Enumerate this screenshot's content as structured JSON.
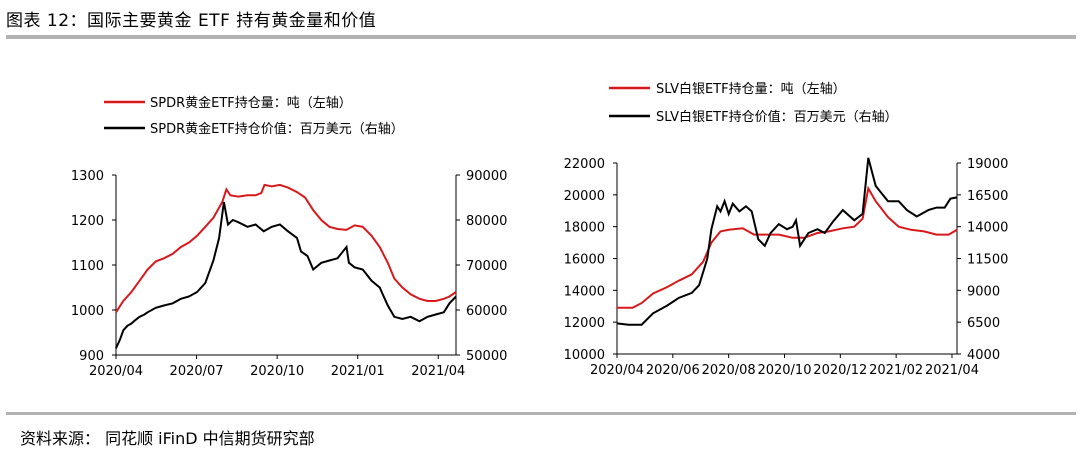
{
  "header": {
    "title": "图表 12：国际主要黄金 ETF 持有黄金量和价值"
  },
  "footer": {
    "source": "资料来源：  同花顺 iFinD 中信期货研究部"
  },
  "colors": {
    "red": "#d7191c",
    "black": "#000000",
    "rule": "#b3b3b3"
  },
  "chart_data": [
    {
      "type": "line",
      "legend": [
        "SPDR黄金ETF持仓量：吨（左轴）",
        "SPDR黄金ETF持仓价值：百万美元（右轴）"
      ],
      "x_ticks": [
        "2020/04",
        "2020/07",
        "2020/10",
        "2021/01",
        "2021/04"
      ],
      "y_left": {
        "ticks": [
          "1300",
          "1200",
          "1100",
          "1000",
          "900"
        ],
        "lim": [
          900,
          1300
        ]
      },
      "y_right": {
        "ticks": [
          "90000",
          "80000",
          "70000",
          "60000",
          "50000"
        ],
        "lim": [
          50000,
          90000
        ]
      },
      "x_range": [
        "2020-03-27",
        "2021-05-20"
      ],
      "series": [
        {
          "name": "SPDR黄金ETF持仓量：吨（左轴）",
          "axis": "left",
          "color": "#d7191c",
          "points": [
            [
              "2020-03-27",
              995
            ],
            [
              "2020-04-05",
              1020
            ],
            [
              "2020-04-15",
              1040
            ],
            [
              "2020-04-25",
              1065
            ],
            [
              "2020-05-05",
              1090
            ],
            [
              "2020-05-15",
              1108
            ],
            [
              "2020-05-25",
              1115
            ],
            [
              "2020-06-05",
              1125
            ],
            [
              "2020-06-15",
              1140
            ],
            [
              "2020-06-25",
              1150
            ],
            [
              "2020-07-05",
              1165
            ],
            [
              "2020-07-15",
              1185
            ],
            [
              "2020-07-25",
              1205
            ],
            [
              "2020-08-05",
              1240
            ],
            [
              "2020-08-10",
              1268
            ],
            [
              "2020-08-15",
              1255
            ],
            [
              "2020-08-25",
              1252
            ],
            [
              "2020-09-05",
              1255
            ],
            [
              "2020-09-15",
              1255
            ],
            [
              "2020-09-22",
              1260
            ],
            [
              "2020-09-26",
              1278
            ],
            [
              "2020-10-05",
              1275
            ],
            [
              "2020-10-15",
              1278
            ],
            [
              "2020-10-25",
              1272
            ],
            [
              "2020-11-05",
              1262
            ],
            [
              "2020-11-15",
              1250
            ],
            [
              "2020-11-25",
              1222
            ],
            [
              "2020-12-05",
              1200
            ],
            [
              "2020-12-15",
              1185
            ],
            [
              "2020-12-25",
              1180
            ],
            [
              "2021-01-05",
              1178
            ],
            [
              "2021-01-15",
              1188
            ],
            [
              "2021-01-25",
              1185
            ],
            [
              "2021-02-05",
              1165
            ],
            [
              "2021-02-15",
              1140
            ],
            [
              "2021-02-25",
              1105
            ],
            [
              "2021-03-05",
              1070
            ],
            [
              "2021-03-15",
              1050
            ],
            [
              "2021-03-25",
              1035
            ],
            [
              "2021-04-05",
              1025
            ],
            [
              "2021-04-15",
              1020
            ],
            [
              "2021-04-25",
              1020
            ],
            [
              "2021-05-05",
              1025
            ],
            [
              "2021-05-12",
              1030
            ],
            [
              "2021-05-20",
              1040
            ]
          ]
        },
        {
          "name": "SPDR黄金ETF持仓价值：百万美元（右轴）",
          "axis": "right",
          "color": "#000000",
          "points": [
            [
              "2020-03-27",
              51500
            ],
            [
              "2020-04-01",
              53500
            ],
            [
              "2020-04-05",
              55500
            ],
            [
              "2020-04-10",
              56500
            ],
            [
              "2020-04-15",
              57000
            ],
            [
              "2020-04-20",
              57800
            ],
            [
              "2020-04-25",
              58500
            ],
            [
              "2020-05-01",
              59000
            ],
            [
              "2020-05-05",
              59500
            ],
            [
              "2020-05-15",
              60500
            ],
            [
              "2020-05-25",
              61000
            ],
            [
              "2020-06-05",
              61500
            ],
            [
              "2020-06-15",
              62500
            ],
            [
              "2020-06-25",
              63000
            ],
            [
              "2020-07-05",
              64000
            ],
            [
              "2020-07-15",
              66000
            ],
            [
              "2020-07-25",
              71000
            ],
            [
              "2020-08-01",
              76000
            ],
            [
              "2020-08-07",
              84000
            ],
            [
              "2020-08-12",
              79000
            ],
            [
              "2020-08-18",
              80000
            ],
            [
              "2020-08-25",
              79500
            ],
            [
              "2020-09-05",
              78500
            ],
            [
              "2020-09-15",
              79000
            ],
            [
              "2020-09-25",
              77500
            ],
            [
              "2020-10-05",
              78500
            ],
            [
              "2020-10-15",
              79000
            ],
            [
              "2020-10-25",
              77500
            ],
            [
              "2020-11-05",
              76000
            ],
            [
              "2020-11-10",
              73000
            ],
            [
              "2020-11-18",
              72000
            ],
            [
              "2020-11-25",
              69000
            ],
            [
              "2020-12-05",
              70500
            ],
            [
              "2020-12-15",
              71000
            ],
            [
              "2020-12-25",
              71500
            ],
            [
              "2021-01-05",
              74000
            ],
            [
              "2021-01-08",
              70500
            ],
            [
              "2021-01-15",
              69500
            ],
            [
              "2021-01-25",
              69000
            ],
            [
              "2021-02-05",
              66500
            ],
            [
              "2021-02-15",
              65000
            ],
            [
              "2021-02-25",
              61000
            ],
            [
              "2021-03-05",
              58500
            ],
            [
              "2021-03-15",
              58000
            ],
            [
              "2021-03-25",
              58500
            ],
            [
              "2021-04-05",
              57500
            ],
            [
              "2021-04-15",
              58500
            ],
            [
              "2021-04-25",
              59000
            ],
            [
              "2021-05-05",
              59500
            ],
            [
              "2021-05-12",
              61500
            ],
            [
              "2021-05-20",
              63000
            ]
          ]
        }
      ]
    },
    {
      "type": "line",
      "legend": [
        "SLV白银ETF持仓量：吨（左轴）",
        "SLV白银ETF持仓价值：百万美元（右轴）"
      ],
      "x_ticks": [
        "2020/04",
        "2020/06",
        "2020/08",
        "2020/10",
        "2020/12",
        "2021/02",
        "2021/04"
      ],
      "y_left": {
        "ticks": [
          "22000",
          "20000",
          "18000",
          "16000",
          "14000",
          "12000",
          "10000"
        ],
        "lim": [
          10000,
          22000
        ]
      },
      "y_right": {
        "ticks": [
          "19000",
          "16500",
          "14000",
          "11500",
          "9000",
          "6500",
          "4000"
        ],
        "lim": [
          4000,
          19000
        ]
      },
      "x_range": [
        "2020-04-01",
        "2021-05-20"
      ],
      "series": [
        {
          "name": "SLV白银ETF持仓量：吨（左轴）",
          "axis": "left",
          "color": "#d7191c",
          "points": [
            [
              "2020-04-01",
              12900
            ],
            [
              "2020-04-20",
              12900
            ],
            [
              "2020-05-01",
              13200
            ],
            [
              "2020-05-15",
              13800
            ],
            [
              "2020-06-01",
              14200
            ],
            [
              "2020-06-15",
              14600
            ],
            [
              "2020-07-01",
              15000
            ],
            [
              "2020-07-15",
              15800
            ],
            [
              "2020-07-25",
              17000
            ],
            [
              "2020-08-05",
              17700
            ],
            [
              "2020-08-15",
              17800
            ],
            [
              "2020-09-01",
              17900
            ],
            [
              "2020-09-15",
              17500
            ],
            [
              "2020-10-01",
              17500
            ],
            [
              "2020-10-15",
              17500
            ],
            [
              "2020-11-01",
              17300
            ],
            [
              "2020-11-15",
              17300
            ],
            [
              "2020-12-01",
              17600
            ],
            [
              "2020-12-15",
              17700
            ],
            [
              "2021-01-01",
              17900
            ],
            [
              "2021-01-15",
              18000
            ],
            [
              "2021-01-25",
              18500
            ],
            [
              "2021-02-01",
              20400
            ],
            [
              "2021-02-10",
              19600
            ],
            [
              "2021-02-25",
              18600
            ],
            [
              "2021-03-10",
              18000
            ],
            [
              "2021-03-25",
              17800
            ],
            [
              "2021-04-10",
              17700
            ],
            [
              "2021-04-25",
              17500
            ],
            [
              "2021-05-10",
              17500
            ],
            [
              "2021-05-20",
              17800
            ]
          ]
        },
        {
          "name": "SLV白银ETF持仓价值：百万美元（右轴）",
          "axis": "right",
          "color": "#000000",
          "points": [
            [
              "2020-04-01",
              6400
            ],
            [
              "2020-04-15",
              6300
            ],
            [
              "2020-05-01",
              6300
            ],
            [
              "2020-05-15",
              7200
            ],
            [
              "2020-06-01",
              7800
            ],
            [
              "2020-06-15",
              8400
            ],
            [
              "2020-07-01",
              8800
            ],
            [
              "2020-07-10",
              9400
            ],
            [
              "2020-07-20",
              11500
            ],
            [
              "2020-07-25",
              13800
            ],
            [
              "2020-08-01",
              15600
            ],
            [
              "2020-08-05",
              15200
            ],
            [
              "2020-08-10",
              16000
            ],
            [
              "2020-08-15",
              15000
            ],
            [
              "2020-08-20",
              15800
            ],
            [
              "2020-08-28",
              15200
            ],
            [
              "2020-09-05",
              15600
            ],
            [
              "2020-09-12",
              15200
            ],
            [
              "2020-09-20",
              13000
            ],
            [
              "2020-09-28",
              12500
            ],
            [
              "2020-10-05",
              13500
            ],
            [
              "2020-10-15",
              14200
            ],
            [
              "2020-10-25",
              13800
            ],
            [
              "2020-11-01",
              14000
            ],
            [
              "2020-11-05",
              14500
            ],
            [
              "2020-11-10",
              12500
            ],
            [
              "2020-11-20",
              13500
            ],
            [
              "2020-12-01",
              13800
            ],
            [
              "2020-12-10",
              13500
            ],
            [
              "2020-12-20",
              14400
            ],
            [
              "2021-01-01",
              15300
            ],
            [
              "2021-01-15",
              14500
            ],
            [
              "2021-01-25",
              15000
            ],
            [
              "2021-02-01",
              19400
            ],
            [
              "2021-02-10",
              17200
            ],
            [
              "2021-02-25",
              16000
            ],
            [
              "2021-03-10",
              16000
            ],
            [
              "2021-03-20",
              15300
            ],
            [
              "2021-04-01",
              14800
            ],
            [
              "2021-04-15",
              15300
            ],
            [
              "2021-04-25",
              15500
            ],
            [
              "2021-05-05",
              15500
            ],
            [
              "2021-05-12",
              16200
            ],
            [
              "2021-05-20",
              16300
            ]
          ]
        }
      ]
    }
  ]
}
